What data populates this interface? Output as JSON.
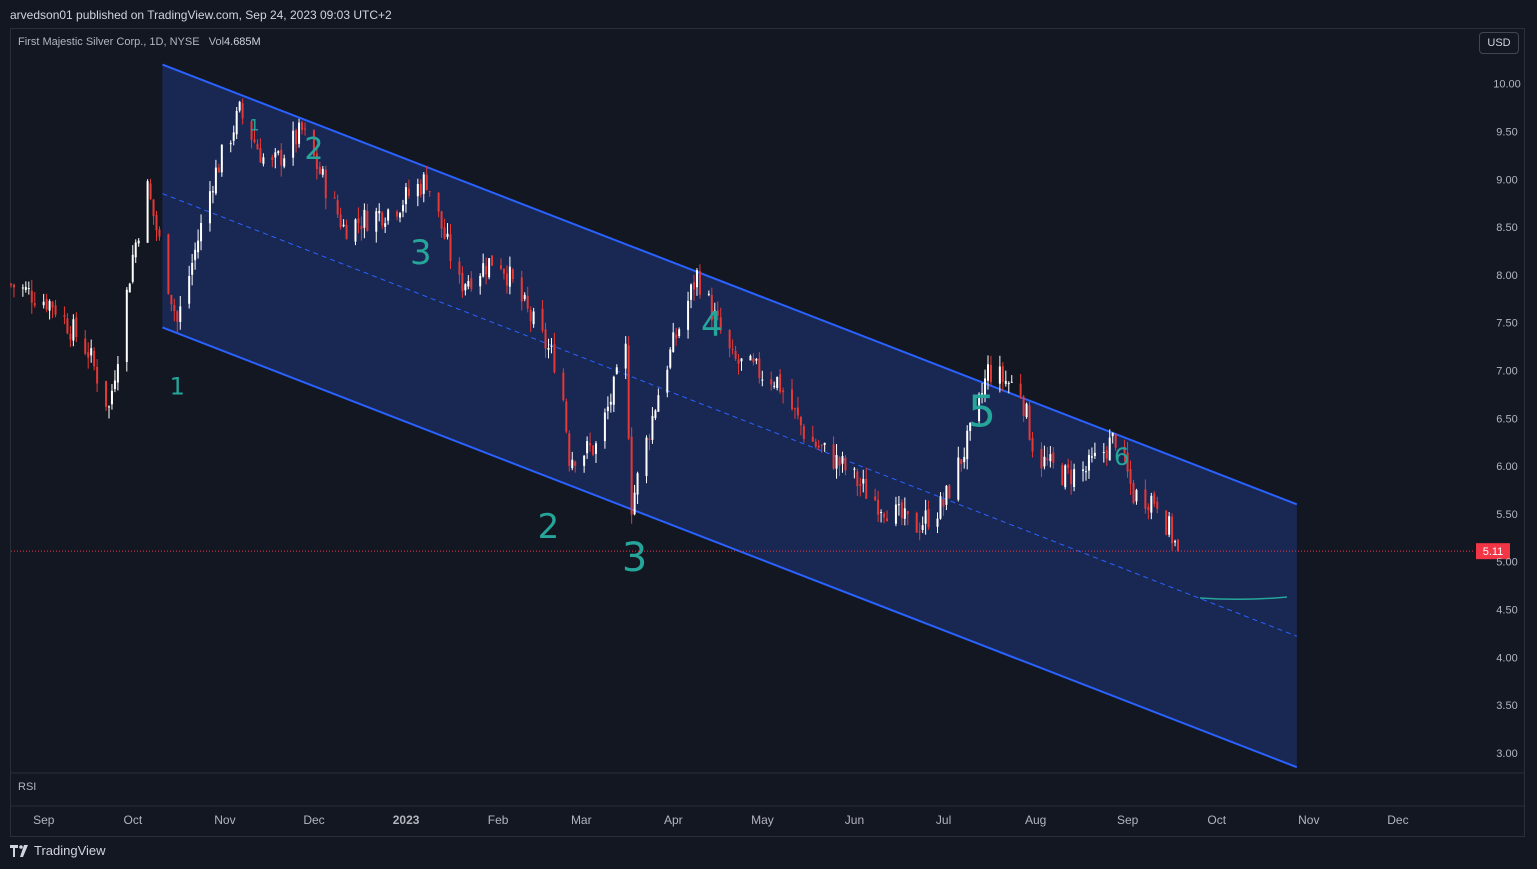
{
  "header": {
    "published": "arvedson01 published on TradingView.com, Sep 24, 2023 09:03 UTC+2"
  },
  "legend": {
    "symbol": "First Majestic Silver Corp., 1D, NYSE",
    "vol_label": "Vol",
    "vol_value": "4.685M"
  },
  "currency_button": "USD",
  "indicator_pane": "RSI",
  "brand": "TradingView",
  "colors": {
    "background": "#131722",
    "up": "#ffffff",
    "down": "#e53935",
    "channel_line": "#2962ff",
    "channel_fill": "#1b2a5c",
    "annotation": "#26a69a",
    "price_line": "#f23645"
  },
  "chart_data": {
    "type": "candlestick",
    "title": "First Majestic Silver Corp., 1D, NYSE",
    "x_ticks": [
      "Sep",
      "Oct",
      "Nov",
      "Dec",
      "2023",
      "Feb",
      "Mar",
      "Apr",
      "May",
      "Jun",
      "Jul",
      "Aug",
      "Sep",
      "Oct",
      "Nov",
      "Dec"
    ],
    "x_range": [
      "2022-08-25",
      "2023-12-31"
    ],
    "y_ticks": [
      "10.00",
      "9.50",
      "9.00",
      "8.50",
      "8.00",
      "7.50",
      "7.00",
      "6.50",
      "6.00",
      "5.50",
      "5.00",
      "4.50",
      "4.00",
      "3.50",
      "3.00"
    ],
    "ylim": [
      2.8,
      10.3
    ],
    "last_price": "5.11",
    "price_path": [
      [
        "2022-08-25",
        7.9
      ],
      [
        "2022-09-08",
        7.7
      ],
      [
        "2022-09-20",
        7.2
      ],
      [
        "2022-09-27",
        6.6
      ],
      [
        "2022-10-05",
        8.2
      ],
      [
        "2022-10-10",
        8.9
      ],
      [
        "2022-10-20",
        7.5
      ],
      [
        "2022-11-01",
        9.0
      ],
      [
        "2022-11-10",
        9.7
      ],
      [
        "2022-11-20",
        9.1
      ],
      [
        "2022-12-01",
        9.5
      ],
      [
        "2022-12-15",
        8.5
      ],
      [
        "2023-01-01",
        8.7
      ],
      [
        "2023-01-12",
        9.0
      ],
      [
        "2023-01-23",
        7.9
      ],
      [
        "2023-02-05",
        8.2
      ],
      [
        "2023-02-15",
        7.6
      ],
      [
        "2023-02-26",
        7.0
      ],
      [
        "2023-03-01",
        6.1
      ],
      [
        "2023-03-10",
        6.2
      ],
      [
        "2023-03-20",
        7.2
      ],
      [
        "2023-03-22",
        5.6
      ],
      [
        "2023-04-01",
        6.9
      ],
      [
        "2023-04-13",
        8.0
      ],
      [
        "2023-04-25",
        7.1
      ],
      [
        "2023-05-10",
        6.9
      ],
      [
        "2023-05-20",
        6.3
      ],
      [
        "2023-06-01",
        6.0
      ],
      [
        "2023-06-10",
        5.7
      ],
      [
        "2023-06-25",
        5.35
      ],
      [
        "2023-07-05",
        5.6
      ],
      [
        "2023-07-15",
        6.4
      ],
      [
        "2023-07-20",
        7.0
      ],
      [
        "2023-07-31",
        6.8
      ],
      [
        "2023-08-05",
        6.1
      ],
      [
        "2023-08-15",
        5.9
      ],
      [
        "2023-08-22",
        5.95
      ],
      [
        "2023-09-01",
        6.3
      ],
      [
        "2023-09-07",
        5.7
      ],
      [
        "2023-09-15",
        5.65
      ],
      [
        "2023-09-22",
        5.11
      ]
    ],
    "channel": {
      "upper": [
        [
          "2022-10-15",
          10.2
        ],
        [
          "2023-11-01",
          5.6
        ]
      ],
      "lower": [
        [
          "2022-10-15",
          7.45
        ],
        [
          "2023-11-01",
          2.85
        ]
      ],
      "median": [
        [
          "2022-10-15",
          8.85
        ],
        [
          "2023-11-01",
          4.22
        ]
      ]
    },
    "annotations": {
      "upper_labels": [
        "1",
        "2",
        "3",
        "4",
        "5",
        "6"
      ],
      "lower_labels": [
        "1",
        "2",
        "3"
      ]
    }
  }
}
